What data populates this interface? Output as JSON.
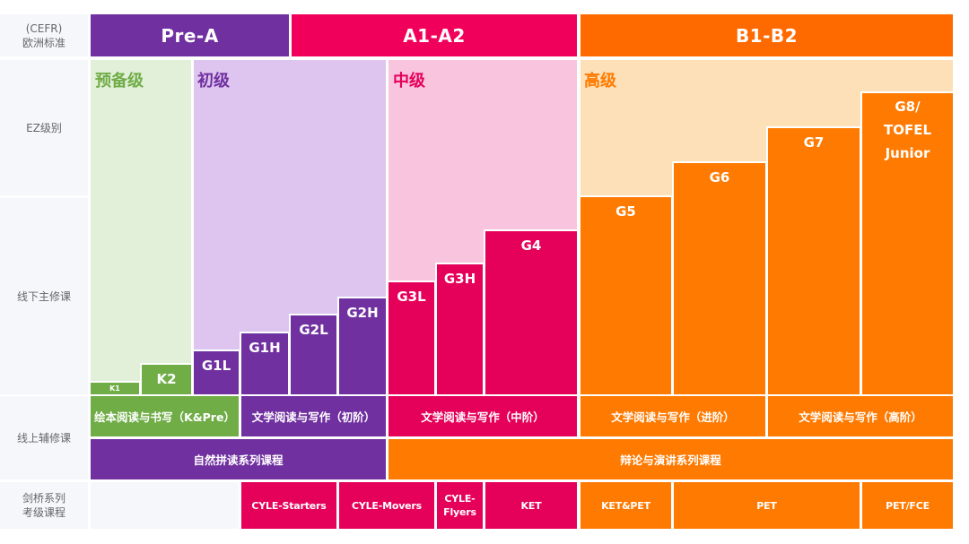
{
  "row_labels": {
    "cefr": [
      "(CEFR)",
      "欧洲标准"
    ],
    "ez_level": "EZ级别",
    "offline": "线下主修课",
    "online": "线上辅修课",
    "cambridge": [
      "剑桥系列",
      "考级课程"
    ]
  },
  "cefr_levels": [
    "Pre-A",
    "A1-A2",
    "B1-B2"
  ],
  "ez_levels": [
    "预备级",
    "初级",
    "中级",
    "高级"
  ],
  "offline_courses": [
    "K1",
    "K2",
    "G1L",
    "G1H",
    "G2L",
    "G2H",
    "G3L",
    "G3H",
    "G4",
    "G5",
    "G6",
    "G7"
  ],
  "offline_top_course": [
    "G8/",
    "TOFEL",
    "Junior"
  ],
  "online_courses_row1": [
    "绘本阅读与书写（K&Pre）",
    "文学阅读与写作（初阶）",
    "文学阅读与写作（中阶）",
    "文学阅读与写作（进阶）",
    "文学阅读与写作（高阶）"
  ],
  "online_courses_row2": [
    "自然拼读系列课程",
    "辩论与演讲系列课程"
  ],
  "cambridge_courses": [
    "CYLE-Starters",
    "CYLE-Movers",
    [
      "CYLE-",
      "Flyers"
    ],
    "KET",
    "KET&PET",
    "PET",
    "PET/FCE"
  ],
  "colors": {
    "purple": "#7030a0",
    "magenta": "#e5005a",
    "magenta_header": "#f0005a",
    "orange": "#ff7a00",
    "orange_header": "#ff6a00",
    "green": "#70ad47",
    "light_green": "#e2efd9",
    "light_purple": "#dec5ef",
    "light_pink": "#f9c4dd",
    "light_peach": "#fde0b7",
    "label_gray": "#666666",
    "label_bg": "#f5f7fb"
  }
}
